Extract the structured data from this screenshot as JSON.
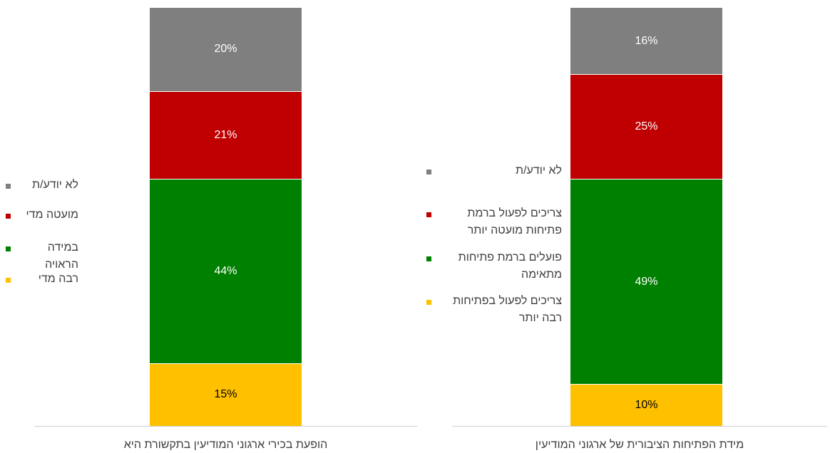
{
  "chart_data": [
    {
      "type": "bar",
      "stacked": true,
      "categories": [
        "הופעת בכירי ארגוני המודיעין בתקשורת היא"
      ],
      "ylim": [
        0,
        100
      ],
      "series": [
        {
          "name": "רבה מדי",
          "color": "#ffc000",
          "label_color": "#000000",
          "values": [
            15
          ],
          "value_labels": [
            "15%"
          ]
        },
        {
          "name": "במידה הראויה",
          "color": "#008000",
          "label_color": "#ffffff",
          "values": [
            44
          ],
          "value_labels": [
            "44%"
          ]
        },
        {
          "name": "מועטה מדי",
          "color": "#c00000",
          "label_color": "#ffffff",
          "values": [
            21
          ],
          "value_labels": [
            "21%"
          ]
        },
        {
          "name": "לא יודע/ת",
          "color": "#7f7f7f",
          "label_color": "#ffffff",
          "values": [
            20
          ],
          "value_labels": [
            "20%"
          ]
        }
      ]
    },
    {
      "type": "bar",
      "stacked": true,
      "categories": [
        "מידת הפתיחות הציבורית של ארגוני המודיעין"
      ],
      "ylim": [
        0,
        100
      ],
      "series": [
        {
          "name": "צריכים לפעול בפתיחות רבה יותר",
          "color": "#ffc000",
          "label_color": "#000000",
          "values": [
            10
          ],
          "value_labels": [
            "10%"
          ]
        },
        {
          "name": "פועלים ברמת פתיחות מתאימה",
          "color": "#008000",
          "label_color": "#ffffff",
          "values": [
            49
          ],
          "value_labels": [
            "49%"
          ]
        },
        {
          "name": "צריכים לפעול ברמת פתיחות מועטה יותר",
          "color": "#c00000",
          "label_color": "#ffffff",
          "values": [
            25
          ],
          "value_labels": [
            "25%"
          ]
        },
        {
          "name": "לא יודע/ת",
          "color": "#7f7f7f",
          "label_color": "#ffffff",
          "values": [
            16
          ],
          "value_labels": [
            "16%"
          ]
        }
      ]
    }
  ]
}
